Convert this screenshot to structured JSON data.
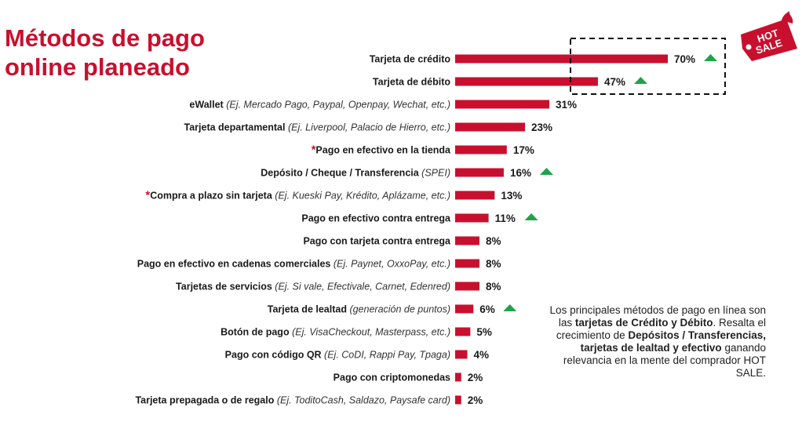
{
  "title": {
    "line1": "Métodos de pago",
    "line2": "online planeado"
  },
  "colors": {
    "brand": "#c8102e",
    "bar": "#c8102e",
    "arrow": "#1ea34a",
    "text": "#1a1a1a"
  },
  "logo": {
    "line1": "HOT",
    "line2": "SALE"
  },
  "note": {
    "p1": "Los principales métodos de pago en línea son las ",
    "b1": "tarjetas de Crédito y Débito",
    "p2": ". Resalta el crecimiento de ",
    "b2": "Depósitos / Transferencias, tarjetas de lealtad y efectivo",
    "p3": " ganando relevancia en la mente del comprador HOT SALE."
  },
  "chart_data": {
    "type": "bar",
    "orientation": "horizontal",
    "title": "Métodos de pago online planeado",
    "unit": "%",
    "categories": [
      {
        "label": "Tarjeta de crédito",
        "note": "",
        "star": false,
        "value": 70,
        "growth": true,
        "highlight": true
      },
      {
        "label": "Tarjeta de débito",
        "note": "",
        "star": false,
        "value": 47,
        "growth": true,
        "highlight": true
      },
      {
        "label": "eWallet",
        "note": "(Ej. Mercado Pago, Paypal, Openpay, Wechat, etc.)",
        "star": false,
        "value": 31,
        "growth": false,
        "highlight": false
      },
      {
        "label": "Tarjeta departamental",
        "note": "(Ej. Liverpool, Palacio de Hierro, etc.)",
        "star": false,
        "value": 23,
        "growth": false,
        "highlight": false
      },
      {
        "label": "Pago en efectivo en la tienda",
        "note": "",
        "star": true,
        "value": 17,
        "growth": false,
        "highlight": false
      },
      {
        "label": "Depósito / Cheque / Transferencia",
        "note": "(SPEI)",
        "star": false,
        "value": 16,
        "growth": true,
        "highlight": false
      },
      {
        "label": "Compra a plazo sin tarjeta",
        "note": "(Ej. Kueski Pay, Krédito, Aplázame, etc.)",
        "star": true,
        "value": 13,
        "growth": false,
        "highlight": false
      },
      {
        "label": "Pago en efectivo contra entrega",
        "note": "",
        "star": false,
        "value": 11,
        "growth": true,
        "highlight": false
      },
      {
        "label": "Pago con tarjeta contra entrega",
        "note": "",
        "star": false,
        "value": 8,
        "growth": false,
        "highlight": false
      },
      {
        "label": "Pago en efectivo en cadenas comerciales",
        "note": "(Ej. Paynet, OxxoPay, etc.)",
        "star": false,
        "value": 8,
        "growth": false,
        "highlight": false
      },
      {
        "label": "Tarjetas de servicios",
        "note": "(Ej. Si vale, Efectivale, Carnet, Edenred)",
        "star": false,
        "value": 8,
        "growth": false,
        "highlight": false
      },
      {
        "label": "Tarjeta de lealtad",
        "note": "(generación de puntos)",
        "star": false,
        "value": 6,
        "growth": true,
        "highlight": false
      },
      {
        "label": "Botón de pago",
        "note": "(Ej. VisaCheckout, Masterpass, etc.)",
        "star": false,
        "value": 5,
        "growth": false,
        "highlight": false
      },
      {
        "label": "Pago con código QR",
        "note": "(Ej. CoDI, Rappi Pay, Tpaga)",
        "star": false,
        "value": 4,
        "growth": false,
        "highlight": false
      },
      {
        "label": "Pago con criptomonedas",
        "note": "",
        "star": false,
        "value": 2,
        "growth": false,
        "highlight": false
      },
      {
        "label": "Tarjeta prepagada o de regalo",
        "note": "(Ej. ToditoCash, Saldazo, Paysafe card)",
        "star": false,
        "value": 2,
        "growth": false,
        "highlight": false
      }
    ],
    "xlim": [
      0,
      70
    ],
    "grid": false,
    "legend": "none"
  }
}
